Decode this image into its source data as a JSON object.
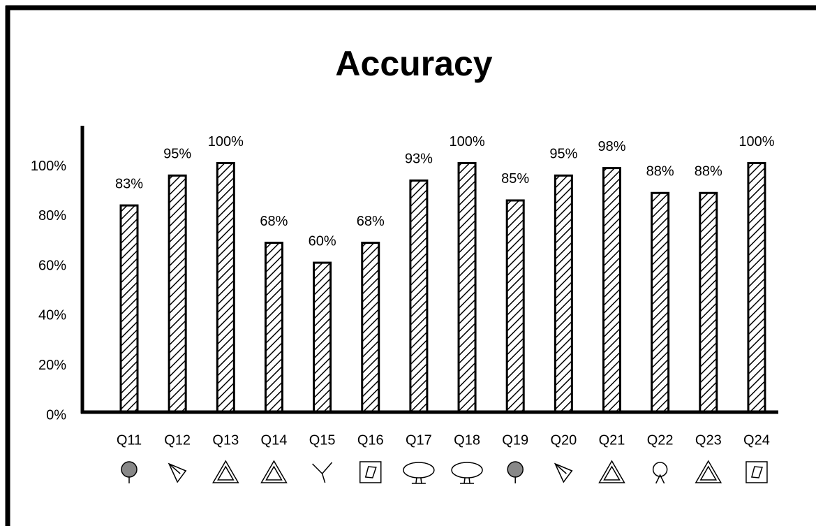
{
  "chart_data": {
    "type": "bar",
    "title": "Accuracy",
    "categories": [
      "Q11",
      "Q12",
      "Q13",
      "Q14",
      "Q15",
      "Q16",
      "Q17",
      "Q18",
      "Q19",
      "Q20",
      "Q21",
      "Q22",
      "Q23",
      "Q24"
    ],
    "values": [
      83,
      95,
      100,
      68,
      60,
      68,
      93,
      100,
      85,
      95,
      98,
      88,
      88,
      100
    ],
    "value_labels": [
      "83%",
      "95%",
      "100%",
      "68%",
      "60%",
      "68%",
      "93%",
      "100%",
      "85%",
      "95%",
      "98%",
      "88%",
      "88%",
      "100%"
    ],
    "color": "#000000",
    "ylim": [
      0,
      115
    ],
    "yticks": [
      {
        "value": 0,
        "label": "0%"
      },
      {
        "value": 20,
        "label": "20%"
      },
      {
        "value": 40,
        "label": "40%"
      },
      {
        "value": 60,
        "label": "60%"
      },
      {
        "value": 80,
        "label": "80%"
      },
      {
        "value": 100,
        "label": "100%"
      }
    ]
  }
}
